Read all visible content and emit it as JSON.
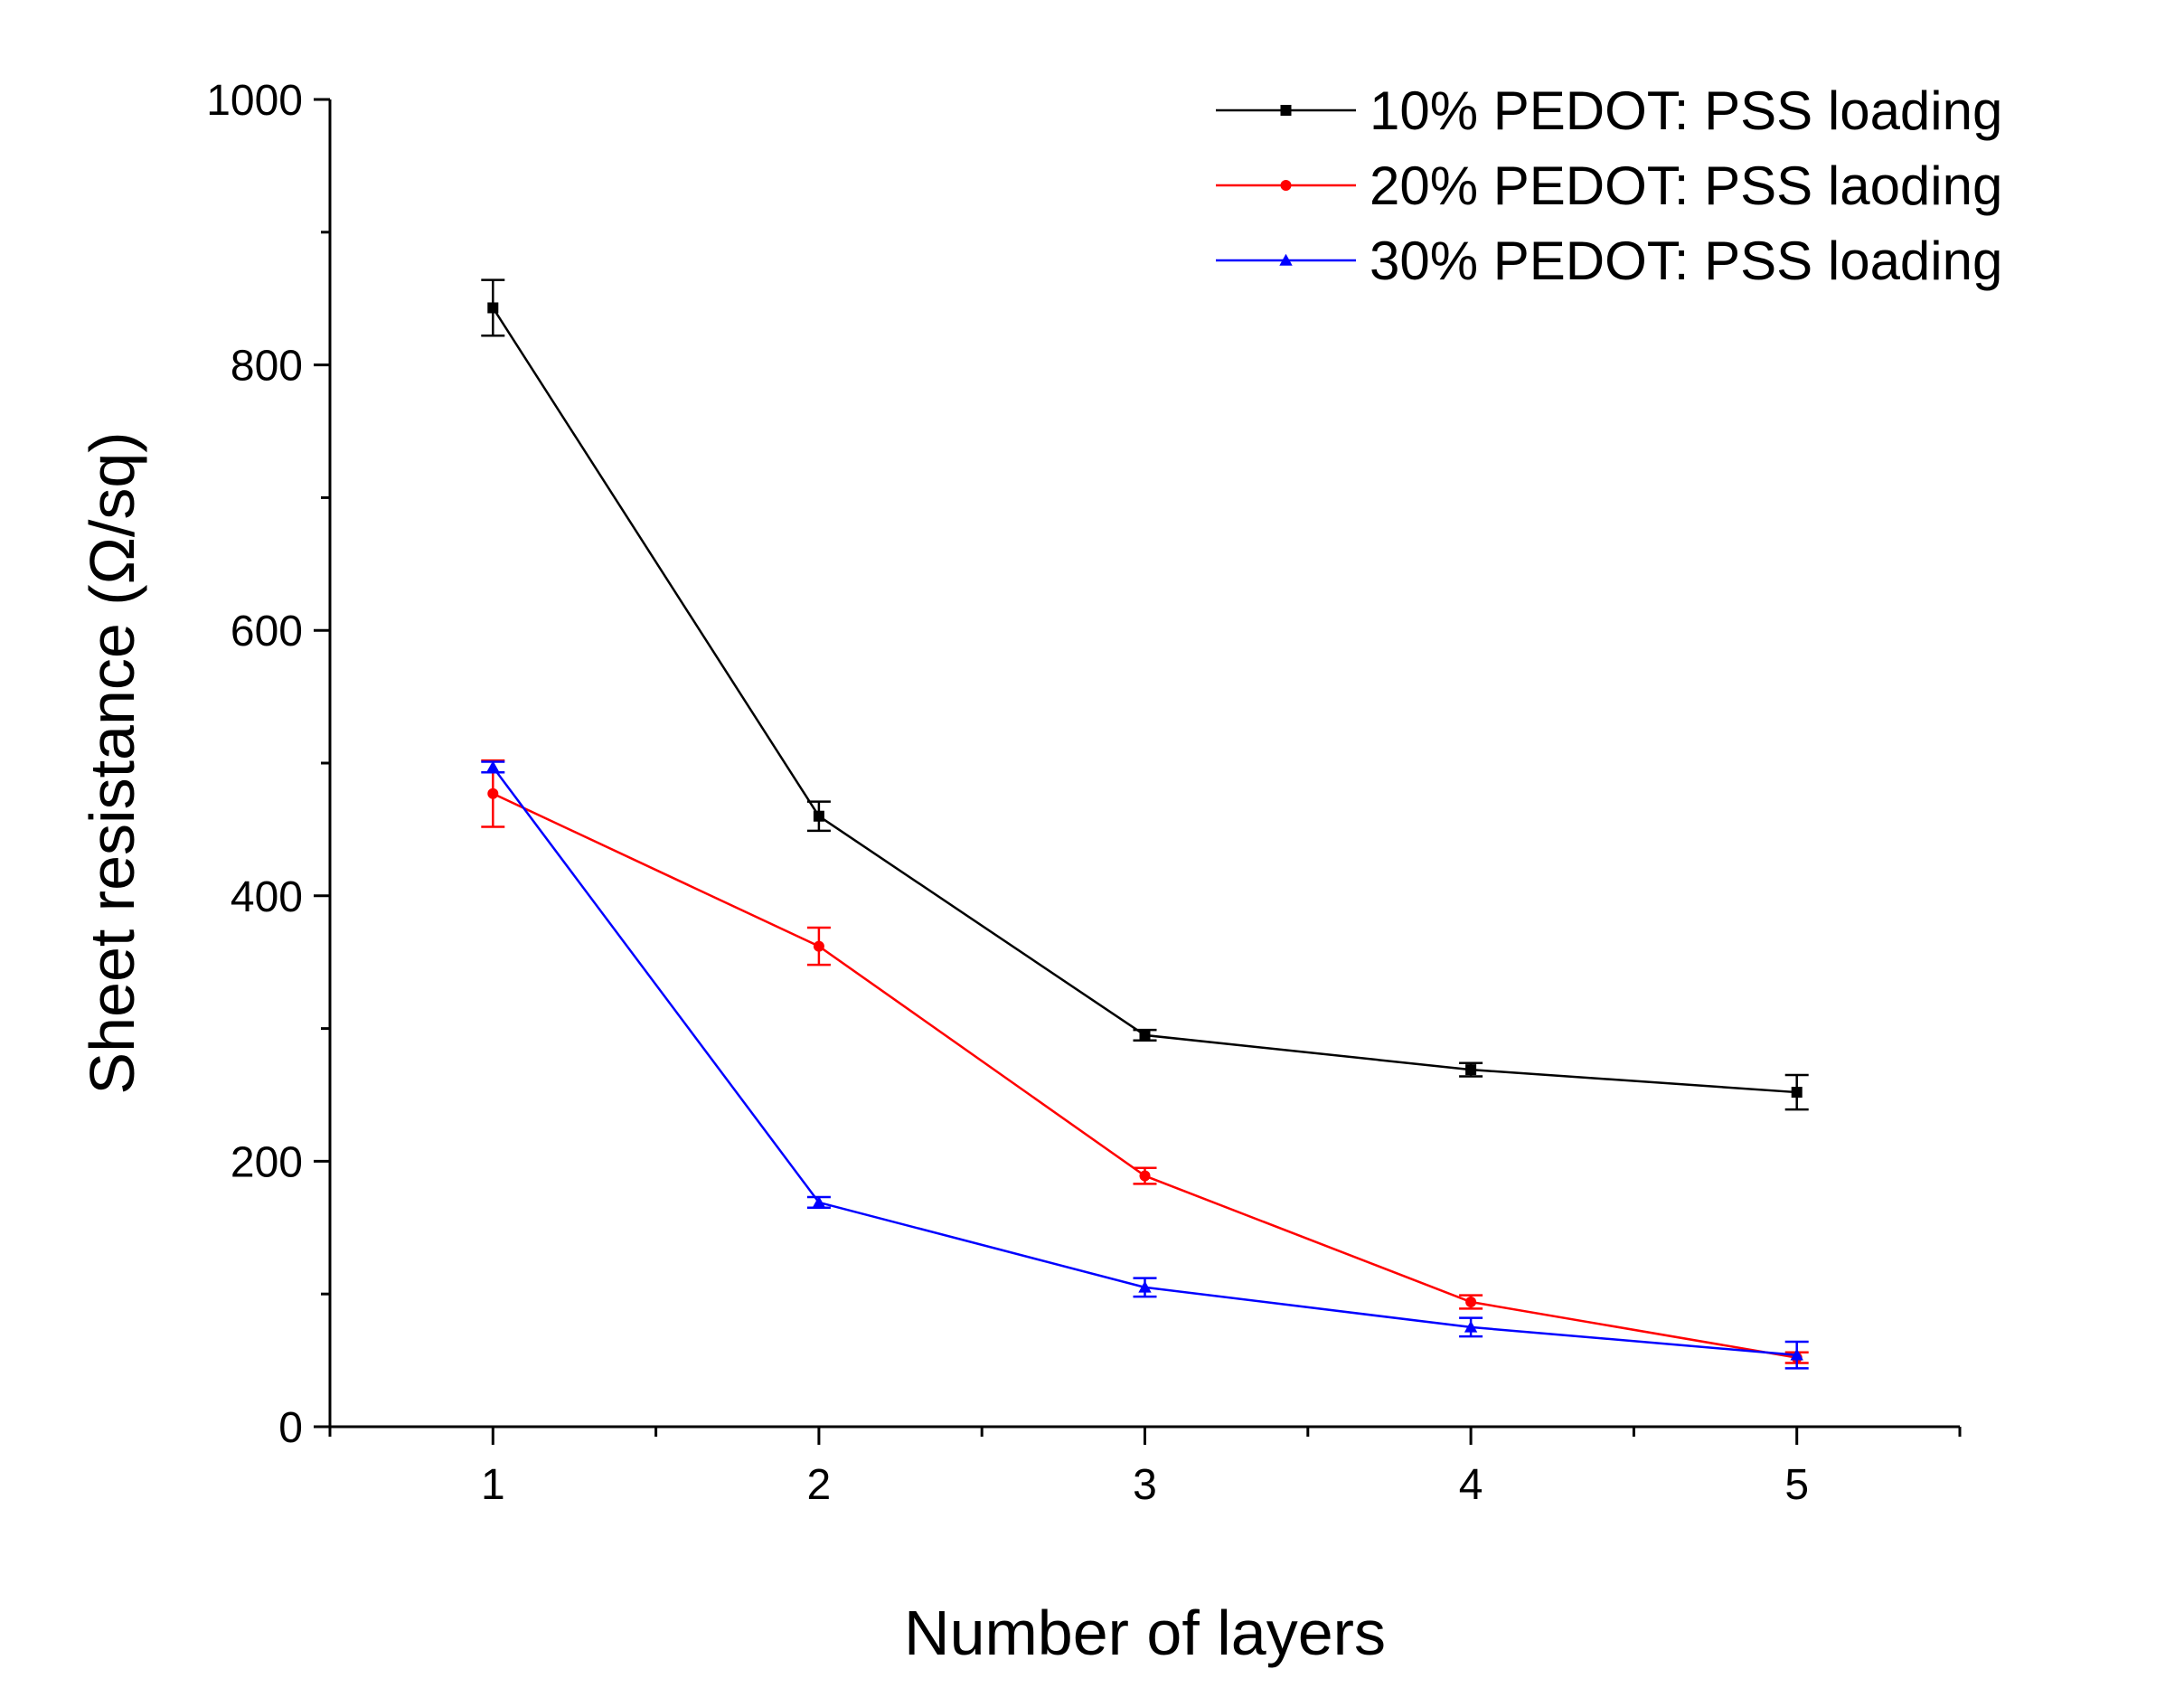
{
  "chart_data": {
    "type": "line",
    "title": "",
    "xlabel": "Number of layers",
    "ylabel": "Sheet resistance (Ω/sq)",
    "xlim": [
      0.5,
      5.5
    ],
    "ylim": [
      0,
      1000
    ],
    "x_ticks": [
      1,
      2,
      3,
      4,
      5
    ],
    "y_ticks": [
      0,
      200,
      400,
      600,
      800,
      1000
    ],
    "x_tick_labels": [
      "1",
      "2",
      "3",
      "4",
      "5"
    ],
    "y_tick_labels": [
      "0",
      "200",
      "400",
      "600",
      "800",
      "1000"
    ],
    "grid": false,
    "legend_position": "top-right",
    "series": [
      {
        "name": "10% PEDOT: PSS loading",
        "color": "#000000",
        "marker": "square",
        "x": [
          1,
          2,
          3,
          4,
          5
        ],
        "y": [
          843,
          460,
          295,
          269,
          252
        ],
        "err": [
          21,
          11,
          4,
          5,
          13
        ]
      },
      {
        "name": "20% PEDOT: PSS laoding",
        "color": "#ff0000",
        "marker": "circle",
        "x": [
          1,
          2,
          3,
          4,
          5
        ],
        "y": [
          477,
          362,
          189,
          94,
          52
        ],
        "err": [
          25,
          14,
          6,
          5,
          4
        ]
      },
      {
        "name": "30% PEDOT: PSS loading",
        "color": "#0000ff",
        "marker": "triangle",
        "x": [
          1,
          2,
          3,
          4,
          5
        ],
        "y": [
          497,
          169,
          105,
          75,
          54
        ],
        "err": [
          4,
          4,
          7,
          7,
          10
        ]
      }
    ]
  }
}
